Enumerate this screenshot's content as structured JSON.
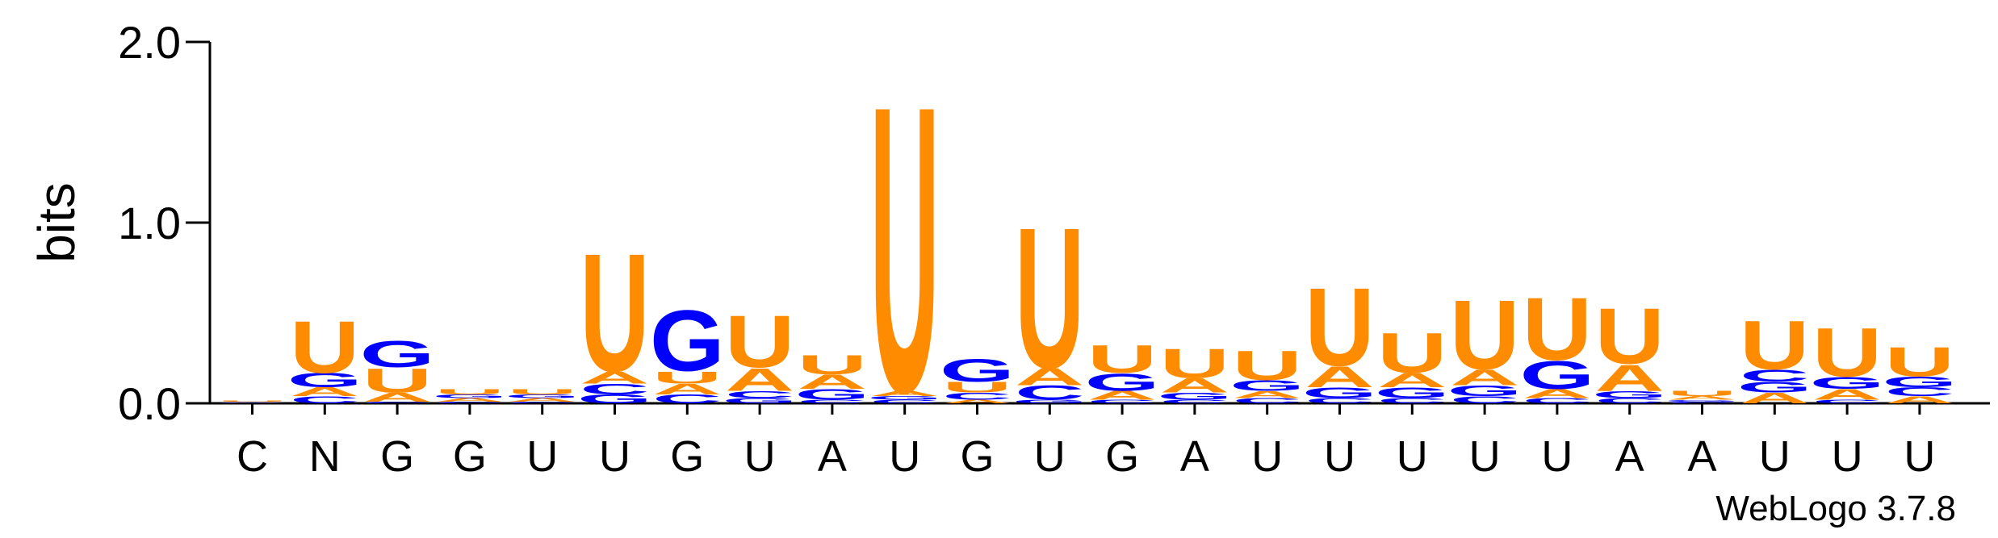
{
  "chart_data": {
    "type": "logo",
    "ylabel": "bits",
    "annotation": "WebLogo 3.7.8",
    "ylim": [
      0,
      2
    ],
    "yticks": [
      {
        "value": 0,
        "label": "0.0"
      },
      {
        "value": 1,
        "label": "1.0"
      },
      {
        "value": 2,
        "label": "2.0"
      }
    ],
    "categories": [
      "C",
      "N",
      "G",
      "G",
      "U",
      "U",
      "G",
      "U",
      "A",
      "U",
      "G",
      "U",
      "G",
      "A",
      "U",
      "U",
      "U",
      "U",
      "U",
      "A",
      "A",
      "U",
      "U",
      "U"
    ],
    "series": [
      {
        "name": "A",
        "color": "#ff8c00",
        "values": [
          0.003,
          0.05,
          0.05,
          0.02,
          0.02,
          0.07,
          0.06,
          0.13,
          0.08,
          0.03,
          0.02,
          0.1,
          0.05,
          0.08,
          0.04,
          0.12,
          0.08,
          0.09,
          0.05,
          0.15,
          0.02,
          0.06,
          0.06,
          0.04
        ]
      },
      {
        "name": "C",
        "color": "#0000ff",
        "values": [
          0.003,
          0.04,
          0.01,
          0.01,
          0.01,
          0.06,
          0.05,
          0.04,
          0.02,
          0.02,
          0.04,
          0.08,
          0.02,
          0.02,
          0.03,
          0.03,
          0.03,
          0.04,
          0.03,
          0.03,
          0.01,
          0.07,
          0.02,
          0.05
        ]
      },
      {
        "name": "G",
        "color": "#0000ff",
        "values": [
          0.002,
          0.08,
          0.15,
          0.02,
          0.02,
          0.05,
          0.35,
          0.03,
          0.06,
          0.02,
          0.13,
          0.02,
          0.1,
          0.04,
          0.06,
          0.06,
          0.06,
          0.06,
          0.16,
          0.04,
          0.01,
          0.06,
          0.07,
          0.06
        ]
      },
      {
        "name": "U",
        "color": "#ff8c00",
        "values": [
          0.005,
          0.3,
          0.14,
          0.03,
          0.03,
          0.68,
          0.07,
          0.3,
          0.11,
          1.65,
          0.06,
          0.81,
          0.16,
          0.17,
          0.17,
          0.45,
          0.23,
          0.4,
          0.36,
          0.32,
          0.03,
          0.28,
          0.28,
          0.17
        ]
      }
    ]
  }
}
